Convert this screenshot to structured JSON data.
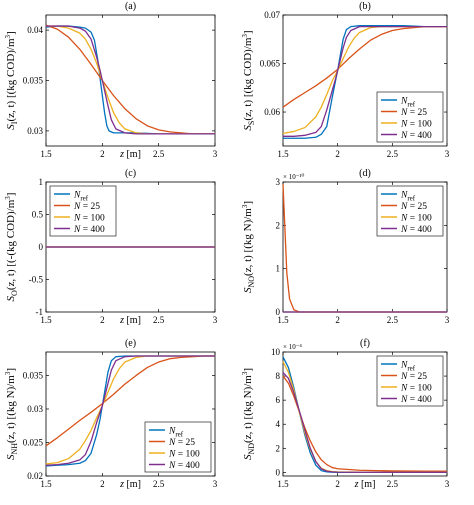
{
  "figure": {
    "colors": {
      "ref": "#0072BD",
      "n25": "#D95319",
      "n100": "#EDB120",
      "n400": "#7E2F8E"
    }
  },
  "chart_data": [
    {
      "panel": "(a)",
      "type": "line",
      "ylabel": "S_I(z, t) [(kg COD)/m^3]",
      "ylabel_parts": [
        "S",
        "I",
        "(z, t) [(kg COD)/m",
        "3",
        "]"
      ],
      "xlabel": "z [m]",
      "xlim": [
        1.5,
        3
      ],
      "ylim": [
        0.0285,
        0.0415
      ],
      "xticks": [
        1.5,
        2,
        2.5,
        3
      ],
      "xtick_labels": [
        "1.5",
        "2",
        "2.5",
        "3"
      ],
      "yticks": [
        0.03,
        0.035,
        0.04
      ],
      "ytick_labels": [
        "0.03",
        "0.035",
        "0.04"
      ],
      "exponent_label": "",
      "legend": null,
      "series": [
        {
          "name": "N_ref",
          "color": "#0072BD",
          "x": [
            1.5,
            1.6,
            1.7,
            1.8,
            1.85,
            1.9,
            1.93,
            1.96,
            1.98,
            2.0,
            2.02,
            2.04,
            2.06,
            2.1,
            2.15,
            2.2,
            2.3,
            2.5,
            2.7,
            2.9,
            3.0
          ],
          "y": [
            0.0403,
            0.0404,
            0.0404,
            0.0403,
            0.0402,
            0.0398,
            0.039,
            0.037,
            0.0352,
            0.0335,
            0.0318,
            0.0305,
            0.03,
            0.0298,
            0.0298,
            0.0298,
            0.0298,
            0.0297,
            0.0297,
            0.0297,
            0.0297
          ]
        },
        {
          "name": "N = 25",
          "color": "#D95319",
          "x": [
            1.5,
            1.6,
            1.7,
            1.8,
            1.9,
            2.0,
            2.1,
            2.2,
            2.3,
            2.4,
            2.5,
            2.6,
            2.7,
            2.8,
            2.9,
            3.0
          ],
          "y": [
            0.0405,
            0.0401,
            0.0393,
            0.0381,
            0.0366,
            0.035,
            0.0335,
            0.0322,
            0.0312,
            0.0305,
            0.0301,
            0.0299,
            0.0298,
            0.0297,
            0.0297,
            0.0297
          ]
        },
        {
          "name": "N = 100",
          "color": "#EDB120",
          "x": [
            1.5,
            1.6,
            1.7,
            1.8,
            1.85,
            1.9,
            1.95,
            2.0,
            2.05,
            2.1,
            2.15,
            2.2,
            2.3,
            2.4,
            2.5,
            2.7,
            3.0
          ],
          "y": [
            0.0404,
            0.0404,
            0.0402,
            0.0397,
            0.0391,
            0.0381,
            0.0367,
            0.035,
            0.0333,
            0.0318,
            0.0308,
            0.0302,
            0.0298,
            0.0297,
            0.0297,
            0.0297,
            0.0297
          ]
        },
        {
          "name": "N = 400",
          "color": "#7E2F8E",
          "x": [
            1.5,
            1.6,
            1.7,
            1.8,
            1.85,
            1.9,
            1.95,
            1.98,
            2.0,
            2.02,
            2.05,
            2.08,
            2.12,
            2.2,
            2.3,
            2.5,
            3.0
          ],
          "y": [
            0.0404,
            0.0404,
            0.0404,
            0.0402,
            0.0399,
            0.0391,
            0.0373,
            0.036,
            0.035,
            0.034,
            0.0325,
            0.0311,
            0.0302,
            0.0298,
            0.0297,
            0.0297,
            0.0297
          ]
        }
      ]
    },
    {
      "panel": "(b)",
      "type": "line",
      "ylabel": "S_S(z, t) [(kg COD)/m^3]",
      "ylabel_parts": [
        "S",
        "S",
        "(z, t) [(kg COD)/m",
        "3",
        "]"
      ],
      "xlabel": "",
      "xlim": [
        1.5,
        3
      ],
      "ylim": [
        0.0565,
        0.07
      ],
      "xticks": [
        1.5,
        2,
        2.5,
        3
      ],
      "xtick_labels": [
        "1.5",
        "2",
        "2.5",
        "3"
      ],
      "yticks": [
        0.06,
        0.065,
        0.07
      ],
      "ytick_labels": [
        "0.06",
        "0.065",
        "0.07"
      ],
      "exponent_label": "",
      "legend": "bottom-right",
      "series": [
        {
          "name": "N_ref",
          "color": "#0072BD",
          "x": [
            1.5,
            1.6,
            1.7,
            1.8,
            1.85,
            1.9,
            1.95,
            1.98,
            2.0,
            2.02,
            2.05,
            2.08,
            2.12,
            2.2,
            2.4,
            2.6,
            2.8,
            3.0
          ],
          "y": [
            0.0573,
            0.0573,
            0.0573,
            0.0574,
            0.0577,
            0.0585,
            0.0615,
            0.0632,
            0.0643,
            0.0656,
            0.0675,
            0.0685,
            0.0688,
            0.0689,
            0.0689,
            0.0689,
            0.0688,
            0.0688
          ]
        },
        {
          "name": "N = 25",
          "color": "#D95319",
          "x": [
            1.5,
            1.6,
            1.7,
            1.8,
            1.9,
            2.0,
            2.1,
            2.2,
            2.3,
            2.4,
            2.5,
            2.6,
            2.7,
            2.8,
            2.9,
            3.0
          ],
          "y": [
            0.0605,
            0.0613,
            0.062,
            0.0627,
            0.0635,
            0.0644,
            0.0655,
            0.0665,
            0.0674,
            0.068,
            0.0684,
            0.0686,
            0.0687,
            0.0688,
            0.0688,
            0.0688
          ]
        },
        {
          "name": "N = 100",
          "color": "#EDB120",
          "x": [
            1.5,
            1.6,
            1.7,
            1.8,
            1.85,
            1.9,
            1.95,
            2.0,
            2.05,
            2.1,
            2.15,
            2.2,
            2.3,
            2.4,
            2.5,
            2.7,
            3.0
          ],
          "y": [
            0.0578,
            0.058,
            0.0584,
            0.0595,
            0.0605,
            0.0618,
            0.0632,
            0.0643,
            0.0655,
            0.0667,
            0.0676,
            0.0682,
            0.0687,
            0.0688,
            0.0688,
            0.0688,
            0.0688
          ]
        },
        {
          "name": "N = 400",
          "color": "#7E2F8E",
          "x": [
            1.5,
            1.6,
            1.7,
            1.8,
            1.85,
            1.9,
            1.95,
            1.98,
            2.0,
            2.02,
            2.05,
            2.08,
            2.12,
            2.2,
            2.3,
            2.5,
            3.0
          ],
          "y": [
            0.0575,
            0.0575,
            0.0576,
            0.0579,
            0.0585,
            0.0602,
            0.0622,
            0.0634,
            0.0643,
            0.0652,
            0.0666,
            0.0677,
            0.0684,
            0.0688,
            0.0688,
            0.0688,
            0.0688
          ]
        }
      ]
    },
    {
      "panel": "(c)",
      "type": "line",
      "ylabel": "S_O(z, t) [(-(kg COD)/m^3]",
      "ylabel_parts": [
        "S",
        "O",
        "(z, t) [(-(kg COD)/m",
        "3",
        "]"
      ],
      "xlabel": "z [m]",
      "xlim": [
        1.5,
        3
      ],
      "ylim": [
        -1,
        1
      ],
      "xticks": [
        1.5,
        2,
        2.5,
        3
      ],
      "xtick_labels": [
        "1.5",
        "2",
        "2.5",
        "3"
      ],
      "yticks": [
        -1,
        -0.5,
        0,
        0.5,
        1
      ],
      "ytick_labels": [
        "-1",
        "-0.5",
        "0",
        "0.5",
        "1"
      ],
      "exponent_label": "",
      "legend": "top-left",
      "series": [
        {
          "name": "N_ref",
          "color": "#0072BD",
          "x": [
            1.5,
            3.0
          ],
          "y": [
            0,
            0
          ]
        },
        {
          "name": "N = 25",
          "color": "#D95319",
          "x": [
            1.5,
            3.0
          ],
          "y": [
            0,
            0
          ]
        },
        {
          "name": "N = 100",
          "color": "#EDB120",
          "x": [
            1.5,
            3.0
          ],
          "y": [
            0,
            0
          ]
        },
        {
          "name": "N = 400",
          "color": "#7E2F8E",
          "x": [
            1.5,
            3.0
          ],
          "y": [
            0,
            0
          ]
        }
      ]
    },
    {
      "panel": "(d)",
      "type": "line",
      "ylabel": "S_NO(z, t) [(kg N)/m^3]",
      "ylabel_parts": [
        "S",
        "NO",
        "(z, t) [(kg N)/m",
        "3",
        "]"
      ],
      "xlabel": "",
      "xlim": [
        1.5,
        3
      ],
      "ylim": [
        0,
        3
      ],
      "xticks": [
        1.5,
        2,
        2.5,
        3
      ],
      "xtick_labels": [
        "1.5",
        "2",
        "2.5",
        "3"
      ],
      "yticks": [
        0,
        1,
        2,
        3
      ],
      "ytick_labels": [
        "0",
        "1",
        "2",
        "3"
      ],
      "exponent_label": "× 10⁻¹⁰",
      "legend": "top-right",
      "series": [
        {
          "name": "N_ref",
          "color": "#0072BD",
          "x": [
            1.5,
            3.0
          ],
          "y": [
            0,
            0
          ]
        },
        {
          "name": "N = 25",
          "color": "#D95319",
          "x": [
            1.5,
            1.535,
            1.56,
            1.6,
            1.65,
            2.0,
            3.0
          ],
          "y": [
            2.95,
            0.9,
            0.3,
            0.05,
            0,
            0,
            0
          ]
        },
        {
          "name": "N = 100",
          "color": "#EDB120",
          "x": [
            1.5,
            3.0
          ],
          "y": [
            0,
            0
          ]
        },
        {
          "name": "N = 400",
          "color": "#7E2F8E",
          "x": [
            1.5,
            3.0
          ],
          "y": [
            0,
            0
          ]
        }
      ]
    },
    {
      "panel": "(e)",
      "type": "line",
      "ylabel": "S_NH(z, t) [(kg N)/m^3]",
      "ylabel_parts": [
        "S",
        "NH",
        "(z, t) [(kg N)/m",
        "3",
        "]"
      ],
      "xlabel": "z [m]",
      "xlim": [
        1.5,
        3
      ],
      "ylim": [
        0.02,
        0.0385
      ],
      "xticks": [
        1.5,
        2,
        2.5,
        3
      ],
      "xtick_labels": [
        "1.5",
        "2",
        "2.5",
        "3"
      ],
      "yticks": [
        0.02,
        0.025,
        0.03,
        0.035
      ],
      "ytick_labels": [
        "0.02",
        "0.025",
        "0.03",
        "0.035"
      ],
      "exponent_label": "",
      "legend": "bottom-right",
      "series": [
        {
          "name": "N_ref",
          "color": "#0072BD",
          "x": [
            1.5,
            1.6,
            1.7,
            1.8,
            1.85,
            1.9,
            1.95,
            1.98,
            2.0,
            2.02,
            2.05,
            2.08,
            2.12,
            2.2,
            2.4,
            2.6,
            2.8,
            3.0
          ],
          "y": [
            0.0215,
            0.0216,
            0.0217,
            0.0219,
            0.0223,
            0.0234,
            0.0262,
            0.0285,
            0.0305,
            0.0325,
            0.0355,
            0.0372,
            0.0378,
            0.0379,
            0.0379,
            0.0379,
            0.0379,
            0.0379
          ]
        },
        {
          "name": "N = 25",
          "color": "#D95319",
          "x": [
            1.5,
            1.6,
            1.7,
            1.8,
            1.9,
            2.0,
            2.1,
            2.2,
            2.3,
            2.4,
            2.5,
            2.6,
            2.7,
            2.8,
            2.9,
            3.0
          ],
          "y": [
            0.0245,
            0.0257,
            0.027,
            0.0283,
            0.0295,
            0.0308,
            0.0322,
            0.0337,
            0.035,
            0.0362,
            0.037,
            0.0375,
            0.0377,
            0.0378,
            0.0379,
            0.0379
          ]
        },
        {
          "name": "N = 100",
          "color": "#EDB120",
          "x": [
            1.5,
            1.6,
            1.7,
            1.8,
            1.85,
            1.9,
            1.95,
            2.0,
            2.05,
            2.1,
            2.15,
            2.2,
            2.3,
            2.4,
            2.5,
            2.7,
            3.0
          ],
          "y": [
            0.0218,
            0.022,
            0.0226,
            0.024,
            0.0253,
            0.0268,
            0.0287,
            0.0305,
            0.0325,
            0.0345,
            0.036,
            0.037,
            0.0377,
            0.0379,
            0.0379,
            0.0379,
            0.0379
          ]
        },
        {
          "name": "N = 400",
          "color": "#7E2F8E",
          "x": [
            1.5,
            1.6,
            1.7,
            1.8,
            1.85,
            1.9,
            1.95,
            1.98,
            2.0,
            2.02,
            2.05,
            2.08,
            2.12,
            2.2,
            2.3,
            2.5,
            3.0
          ],
          "y": [
            0.0216,
            0.0217,
            0.0219,
            0.0224,
            0.0232,
            0.0252,
            0.028,
            0.0295,
            0.0305,
            0.0318,
            0.0338,
            0.0358,
            0.0372,
            0.0378,
            0.0379,
            0.0379,
            0.0379
          ]
        }
      ]
    },
    {
      "panel": "(f)",
      "type": "line",
      "ylabel": "S_ND(z, t) [(kg N)/m^3]",
      "ylabel_parts": [
        "S",
        "ND",
        "(z, t) [(kg N)/m",
        "3",
        "]"
      ],
      "xlabel": "z [m]",
      "xlim": [
        1.5,
        3
      ],
      "ylim": [
        -0.3,
        10
      ],
      "xticks": [
        1.5,
        2,
        2.5,
        3
      ],
      "xtick_labels": [
        "1.5",
        "2",
        "2.5",
        "3"
      ],
      "yticks": [
        0,
        2,
        4,
        6,
        8,
        10
      ],
      "ytick_labels": [
        "0",
        "2",
        "4",
        "6",
        "8",
        "10"
      ],
      "exponent_label": "× 10⁻⁴",
      "legend": "top-right",
      "series": [
        {
          "name": "N_ref",
          "color": "#0072BD",
          "x": [
            1.5,
            1.55,
            1.6,
            1.65,
            1.7,
            1.75,
            1.8,
            1.85,
            1.9,
            1.95,
            2.0,
            2.2,
            2.5,
            3.0
          ],
          "y": [
            9.6,
            8.7,
            7.0,
            5.0,
            3.1,
            1.6,
            0.6,
            0.15,
            0.04,
            0.01,
            0,
            0,
            0,
            0
          ]
        },
        {
          "name": "N = 25",
          "color": "#D95319",
          "x": [
            1.5,
            1.55,
            1.6,
            1.65,
            1.7,
            1.75,
            1.8,
            1.85,
            1.9,
            1.95,
            2.0,
            2.2,
            2.5,
            2.8,
            3.0
          ],
          "y": [
            8.0,
            7.4,
            6.3,
            5.0,
            3.7,
            2.6,
            1.7,
            1.05,
            0.65,
            0.4,
            0.3,
            0.18,
            0.12,
            0.1,
            0.1
          ]
        },
        {
          "name": "N = 100",
          "color": "#EDB120",
          "x": [
            1.5,
            1.55,
            1.6,
            1.65,
            1.7,
            1.75,
            1.8,
            1.85,
            1.9,
            1.95,
            2.0,
            2.2,
            2.5,
            3.0
          ],
          "y": [
            9.2,
            8.3,
            6.8,
            5.0,
            3.3,
            1.9,
            0.9,
            0.35,
            0.15,
            0.07,
            0.04,
            0.02,
            0.02,
            0.02
          ]
        },
        {
          "name": "N = 400",
          "color": "#7E2F8E",
          "x": [
            1.5,
            1.55,
            1.6,
            1.65,
            1.7,
            1.75,
            1.8,
            1.85,
            1.9,
            1.95,
            2.0,
            2.2,
            2.5,
            3.0
          ],
          "y": [
            8.3,
            7.8,
            6.6,
            5.1,
            3.5,
            2.0,
            0.9,
            0.3,
            0.1,
            0.04,
            0.02,
            0.01,
            0.01,
            0.01
          ]
        }
      ]
    }
  ],
  "legend_entries": [
    {
      "base": "N",
      "sub": "ref",
      "eq": ""
    },
    {
      "base": "N",
      "sub": "",
      "eq": " = 25"
    },
    {
      "base": "N",
      "sub": "",
      "eq": " = 100"
    },
    {
      "base": "N",
      "sub": "",
      "eq": " = 400"
    }
  ]
}
